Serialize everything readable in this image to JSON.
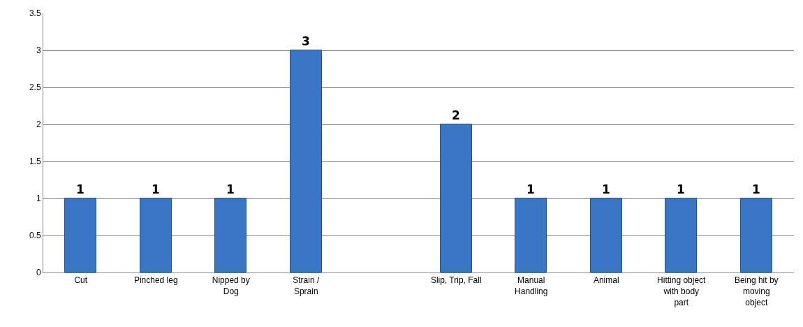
{
  "chart_data": {
    "type": "bar",
    "categories": [
      "Cut",
      "Pinched leg",
      "Nipped by\nDog",
      "Strain /\nSprain",
      null,
      "Slip, Trip, Fall",
      "Manual\nHandling",
      "Animal",
      "Hitting object\nwith body\npart",
      "Being hit by\nmoving\nobject"
    ],
    "values": [
      1,
      1,
      1,
      3,
      null,
      2,
      1,
      1,
      1,
      1
    ],
    "color": "#3b76c5",
    "ylim": [
      0,
      3.5
    ],
    "yticks": [
      0,
      0.5,
      1,
      1.5,
      2,
      2.5,
      3,
      3.5
    ],
    "grid": "y",
    "data_labels": true
  }
}
